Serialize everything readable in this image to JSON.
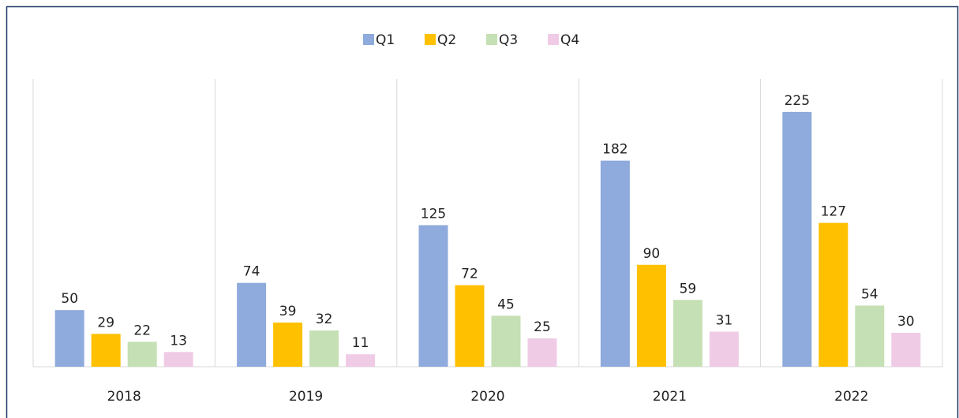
{
  "chart_data": {
    "type": "bar",
    "categories": [
      "2018",
      "2019",
      "2020",
      "2021",
      "2022"
    ],
    "series": [
      {
        "name": "Q1",
        "color": "#8faadc",
        "values": [
          50,
          74,
          125,
          182,
          225
        ]
      },
      {
        "name": "Q2",
        "color": "#ffc000",
        "values": [
          29,
          39,
          72,
          90,
          127
        ]
      },
      {
        "name": "Q3",
        "color": "#c5e0b4",
        "values": [
          22,
          32,
          45,
          59,
          54
        ]
      },
      {
        "name": "Q4",
        "color": "#f0cbe6",
        "values": [
          13,
          11,
          25,
          31,
          30
        ]
      }
    ],
    "ylim": [
      0,
      250
    ],
    "legend": "top"
  }
}
